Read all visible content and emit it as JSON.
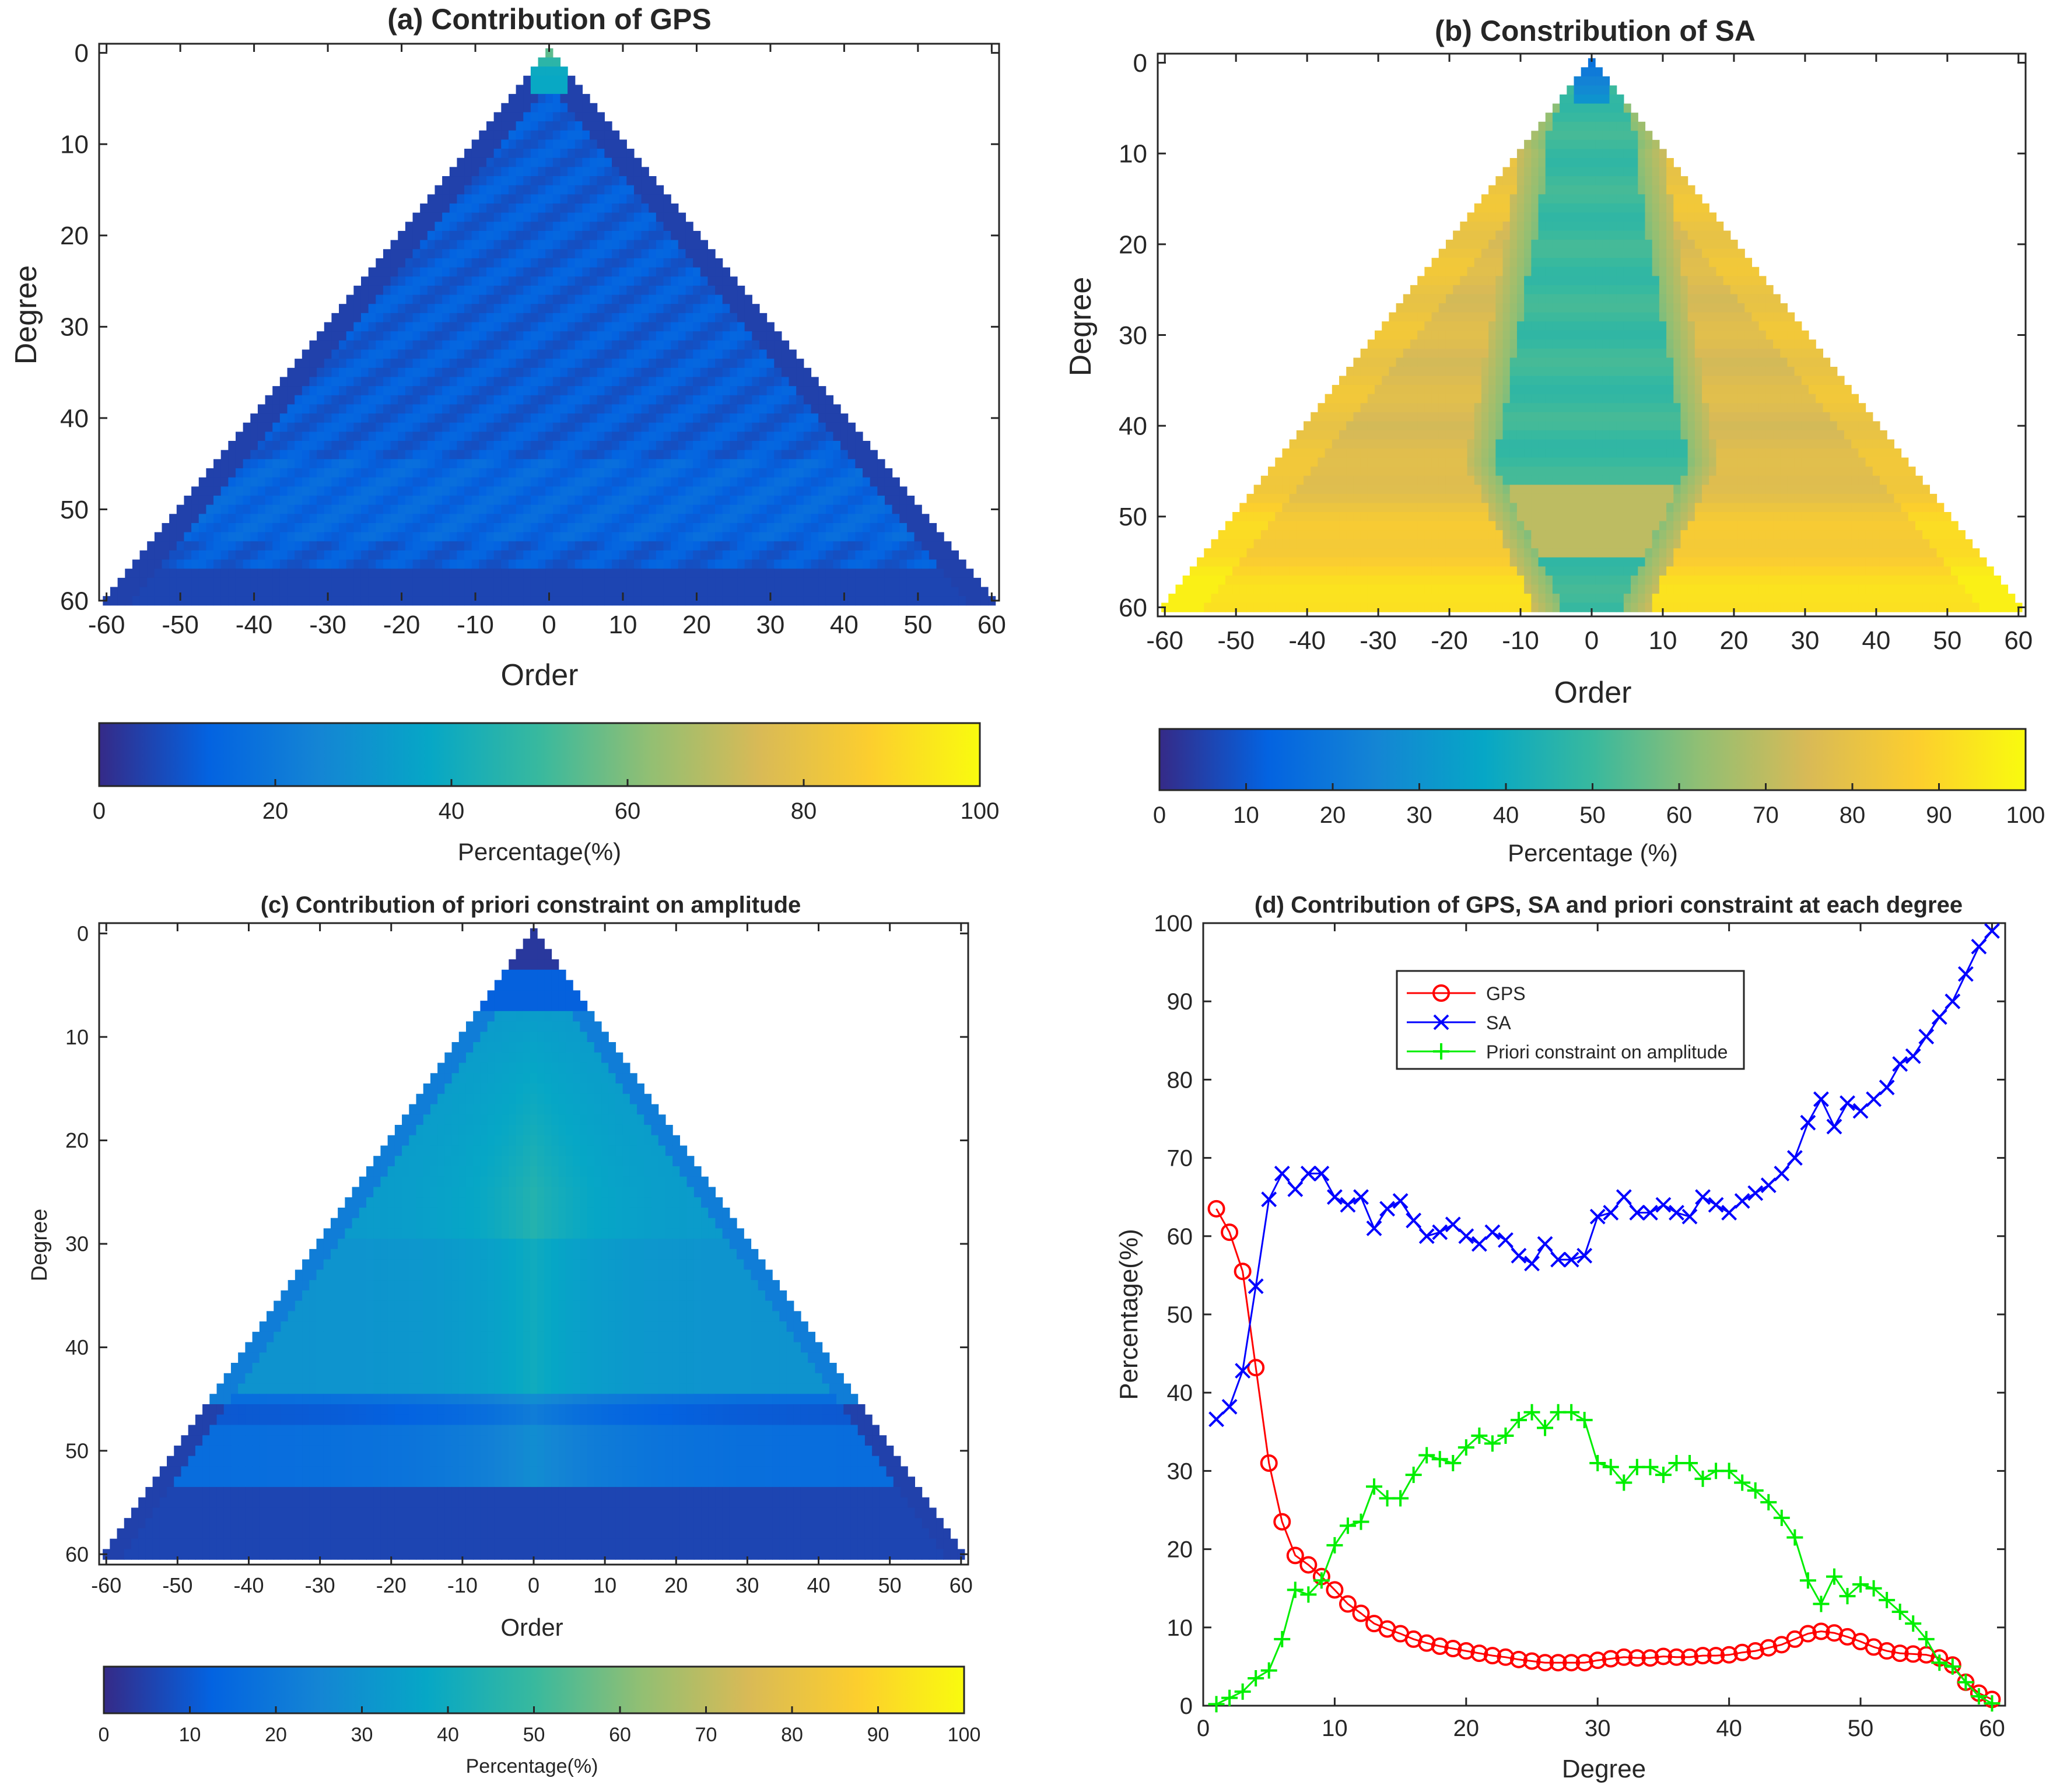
{
  "panels": {
    "a": {
      "title": "(a) Contribution of GPS",
      "xlabel": "Order",
      "ylabel": "Degree",
      "xticks": [
        "-60",
        "-50",
        "-40",
        "-30",
        "-20",
        "-10",
        "0",
        "10",
        "20",
        "30",
        "40",
        "50",
        "60"
      ],
      "yticks": [
        "0",
        "10",
        "20",
        "30",
        "40",
        "50",
        "60"
      ],
      "colorbar_label": "Percentage(%)",
      "colorbar_ticks": [
        "0",
        "20",
        "40",
        "60",
        "80",
        "100"
      ]
    },
    "b": {
      "title": "(b) Constribution of SA",
      "xlabel": "Order",
      "ylabel": "Degree",
      "xticks": [
        "-60",
        "-50",
        "-40",
        "-30",
        "-20",
        "-10",
        "0",
        "10",
        "20",
        "30",
        "40",
        "50",
        "60"
      ],
      "yticks": [
        "0",
        "10",
        "20",
        "30",
        "40",
        "50",
        "60"
      ],
      "colorbar_label": "Percentage (%)",
      "colorbar_ticks": [
        "0",
        "10",
        "20",
        "30",
        "40",
        "50",
        "60",
        "70",
        "80",
        "90",
        "100"
      ]
    },
    "c": {
      "title": "(c) Contribution of priori constraint on amplitude",
      "xlabel": "Order",
      "ylabel": "Degree",
      "xticks": [
        "-60",
        "-50",
        "-40",
        "-30",
        "-20",
        "-10",
        "0",
        "10",
        "20",
        "30",
        "40",
        "50",
        "60"
      ],
      "yticks": [
        "0",
        "10",
        "20",
        "30",
        "40",
        "50",
        "60"
      ],
      "colorbar_label": "Percentage(%)",
      "colorbar_ticks": [
        "0",
        "10",
        "20",
        "30",
        "40",
        "50",
        "60",
        "70",
        "80",
        "90",
        "100"
      ]
    },
    "d": {
      "title": "(d) Contribution of GPS, SA and priori constraint at each degree",
      "xlabel": "Degree",
      "ylabel": "Percentage(%)",
      "xticks": [
        "0",
        "10",
        "20",
        "30",
        "40",
        "50",
        "60"
      ],
      "yticks": [
        "0",
        "10",
        "20",
        "30",
        "40",
        "50",
        "60",
        "70",
        "80",
        "90",
        "100"
      ]
    }
  },
  "colormap": [
    "#352a87",
    "#0363e1",
    "#1485d4",
    "#06a7c6",
    "#38b99e",
    "#92bf73",
    "#d9ba56",
    "#fcce2e",
    "#f9fb0e"
  ],
  "chart_data": [
    {
      "id": "a",
      "type": "heatmap",
      "title": "(a) Contribution of GPS",
      "xlabel": "Order",
      "ylabel": "Degree",
      "xlim": [
        -61,
        61
      ],
      "ylim": [
        0,
        61
      ],
      "clim": [
        0,
        100
      ],
      "description_values": {
        "apex_degrees_0_3": 55,
        "interior": 12,
        "edges": 4,
        "band_degree_46_52": 14
      }
    },
    {
      "id": "b",
      "type": "heatmap",
      "title": "(b) Constribution of SA",
      "xlabel": "Order",
      "ylabel": "Degree",
      "xlim": [
        -61,
        61
      ],
      "ylim": [
        0,
        61
      ],
      "clim": [
        0,
        100
      ],
      "description_values": {
        "apex": 18,
        "central_core": 50,
        "outer": 78,
        "bottom_edges": 96
      }
    },
    {
      "id": "c",
      "type": "heatmap",
      "title": "(c) Contribution of priori constraint on amplitude",
      "xlabel": "Order",
      "ylabel": "Degree",
      "xlim": [
        -61,
        61
      ],
      "ylim": [
        0,
        61
      ],
      "clim": [
        0,
        100
      ],
      "description_values": {
        "apex": 3,
        "center_degree_25": 45,
        "outer": 28,
        "bottom_edges": 5
      }
    },
    {
      "id": "d",
      "type": "line",
      "title": "(d) Contribution of GPS, SA and priori constraint at each degree",
      "xlabel": "Degree",
      "ylabel": "Percentage(%)",
      "xlim": [
        0,
        61
      ],
      "ylim": [
        0,
        100
      ],
      "legend": "top-left",
      "x": [
        1,
        2,
        3,
        4,
        5,
        6,
        7,
        8,
        9,
        10,
        11,
        12,
        13,
        14,
        15,
        16,
        17,
        18,
        19,
        20,
        21,
        22,
        23,
        24,
        25,
        26,
        27,
        28,
        29,
        30,
        31,
        32,
        33,
        34,
        35,
        36,
        37,
        38,
        39,
        40,
        41,
        42,
        43,
        44,
        45,
        46,
        47,
        48,
        49,
        50,
        51,
        52,
        53,
        54,
        55,
        56,
        57,
        58,
        59,
        60
      ],
      "series": [
        {
          "name": "GPS",
          "color": "#ff0000",
          "marker": "o",
          "values": [
            63.5,
            60.5,
            55.5,
            43.2,
            31.0,
            23.5,
            19.2,
            18.0,
            16.5,
            14.8,
            13.0,
            11.8,
            10.5,
            9.8,
            9.2,
            8.5,
            8.0,
            7.6,
            7.3,
            7.0,
            6.7,
            6.4,
            6.2,
            5.9,
            5.7,
            5.5,
            5.5,
            5.5,
            5.5,
            5.8,
            6.0,
            6.2,
            6.1,
            6.1,
            6.3,
            6.2,
            6.2,
            6.4,
            6.4,
            6.5,
            6.8,
            7.0,
            7.4,
            7.8,
            8.5,
            9.2,
            9.5,
            9.3,
            8.8,
            8.2,
            7.5,
            7.0,
            6.7,
            6.6,
            6.5,
            6.1,
            5.2,
            3.0,
            1.6,
            0.8
          ]
        },
        {
          "name": "SA",
          "color": "#0000ff",
          "marker": "x",
          "values": [
            36.6,
            38.2,
            42.8,
            53.6,
            64.7,
            68.0,
            66.0,
            68.0,
            68.0,
            65.0,
            64.0,
            65.0,
            61.0,
            63.5,
            64.5,
            62.0,
            60.0,
            60.5,
            61.5,
            60.0,
            59.0,
            60.5,
            59.5,
            57.5,
            56.5,
            59.0,
            57.0,
            57.0,
            57.5,
            62.5,
            63.0,
            65.0,
            63.0,
            63.0,
            64.0,
            63.0,
            62.5,
            65.0,
            64.0,
            63.0,
            64.5,
            65.5,
            66.5,
            68.0,
            70.0,
            74.5,
            77.5,
            74.0,
            77.0,
            76.0,
            77.5,
            79.0,
            82.0,
            83.0,
            85.5,
            88.0,
            90.0,
            93.5,
            97.0,
            99.0
          ]
        },
        {
          "name": "Priori constraint on amplitude",
          "color": "#00ee00",
          "marker": "+",
          "values": [
            0.2,
            1.0,
            1.8,
            3.5,
            4.5,
            8.5,
            14.8,
            14.2,
            16.0,
            20.5,
            23.0,
            23.5,
            28.0,
            26.5,
            26.5,
            29.5,
            32.0,
            31.5,
            31.0,
            33.0,
            34.5,
            33.5,
            34.5,
            36.5,
            37.5,
            35.5,
            37.5,
            37.5,
            36.5,
            31.0,
            30.5,
            28.5,
            30.5,
            30.5,
            29.5,
            31.0,
            31.0,
            29.0,
            30.0,
            30.0,
            28.5,
            27.5,
            26.0,
            24.0,
            21.5,
            16.0,
            13.0,
            16.5,
            14.0,
            15.5,
            15.0,
            13.5,
            12.0,
            10.5,
            8.5,
            5.5,
            5.0,
            3.0,
            1.2,
            0.3
          ]
        }
      ]
    }
  ]
}
